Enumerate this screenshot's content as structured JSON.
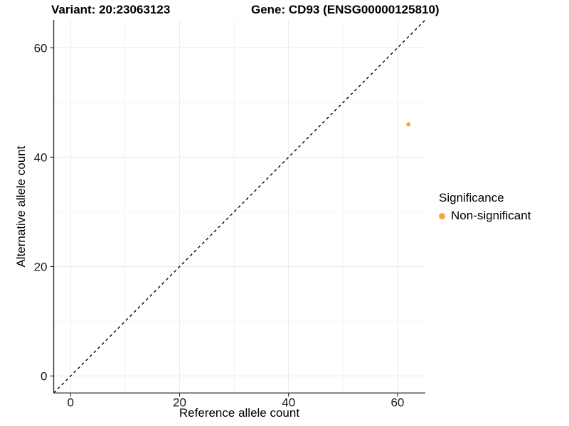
{
  "header": {
    "variant_title": "Variant: 20:23063123",
    "gene_title": "Gene: CD93 (ENSG00000125810)"
  },
  "chart_data": {
    "type": "scatter",
    "title_left": "Variant: 20:23063123",
    "title_right": "Gene: CD93 (ENSG00000125810)",
    "xlabel": "Reference allele count",
    "ylabel": "Alternative allele count",
    "xlim": [
      -3.1,
      65.1
    ],
    "ylim": [
      -3.1,
      65.1
    ],
    "x_ticks": [
      0,
      20,
      40,
      60
    ],
    "y_ticks": [
      0,
      20,
      40,
      60
    ],
    "x_minor_gridlines": [
      10,
      30,
      50
    ],
    "y_minor_gridlines": [
      10,
      30,
      50
    ],
    "grid": true,
    "identity_line": {
      "slope": 1,
      "intercept": 0,
      "style": "dashed",
      "color": "#000000"
    },
    "series": [
      {
        "name": "Non-significant",
        "color": "#F7A43F",
        "points": [
          {
            "x": 62,
            "y": 46
          }
        ]
      }
    ],
    "legend": {
      "title": "Significance",
      "position": "right",
      "items": [
        {
          "label": "Non-significant",
          "color": "#F7A43F"
        }
      ]
    }
  },
  "colors": {
    "background": "#FFFFFF",
    "axis_line": "#333333",
    "tick_label": "#1A1A1A",
    "grid_major": "#E9E9E9",
    "grid_minor": "#F4F4F4",
    "point_orange": "#F7A43F",
    "reference_line": "#000000"
  }
}
